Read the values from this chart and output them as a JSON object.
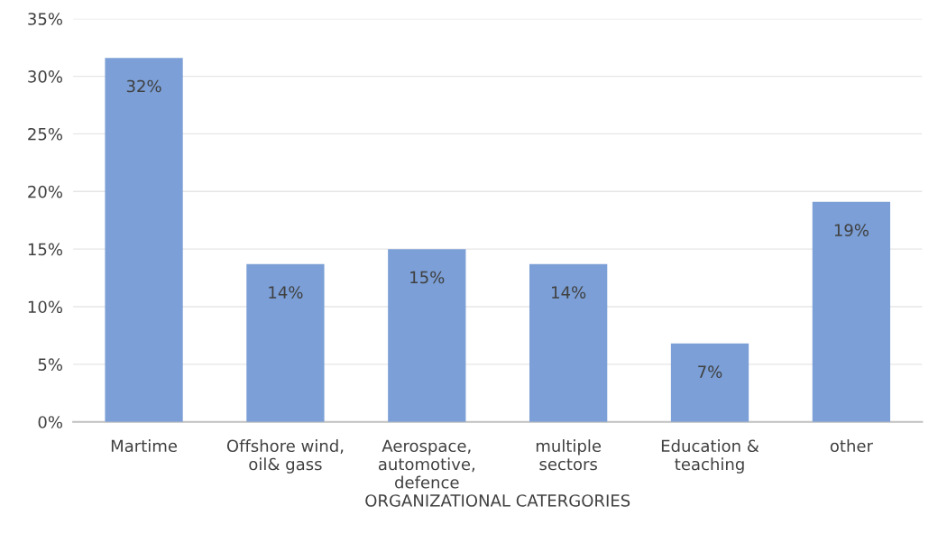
{
  "chart_data": {
    "type": "bar",
    "xlabel": "ORGANIZATIONAL CATERGORIES",
    "categories": [
      "Martime",
      "Offshore wind,\noil& gass",
      "Aerospace,\nautomotive,\ndefence",
      "multiple\nsectors",
      "Education &\nteaching",
      "other"
    ],
    "values": [
      31.6,
      13.7,
      15.0,
      13.7,
      6.8,
      19.1
    ],
    "value_labels": [
      "32%",
      "14%",
      "15%",
      "14%",
      "7%",
      "19%"
    ],
    "color": "#7b9fd6",
    "ylim": [
      0,
      35
    ],
    "yticks": [
      {
        "value": 0,
        "label": "0%"
      },
      {
        "value": 5,
        "label": "5%"
      },
      {
        "value": 10,
        "label": "10%"
      },
      {
        "value": 15,
        "label": "15%"
      },
      {
        "value": 20,
        "label": "20%"
      },
      {
        "value": 25,
        "label": "25%"
      },
      {
        "value": 30,
        "label": "30%"
      },
      {
        "value": 35,
        "label": "35%"
      }
    ],
    "grid": "y"
  }
}
